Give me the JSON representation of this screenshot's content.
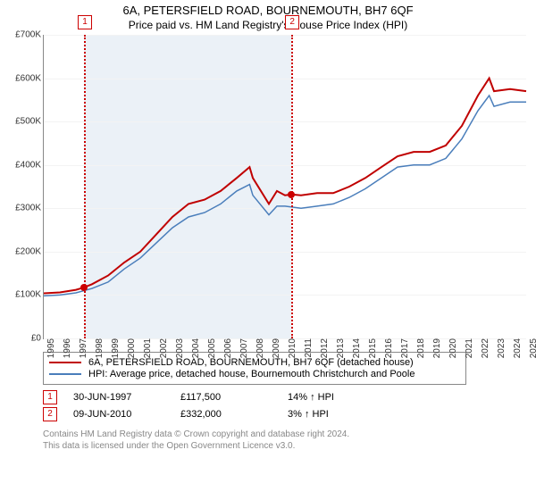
{
  "title": "6A, PETERSFIELD ROAD, BOURNEMOUTH, BH7 6QF",
  "subtitle": "Price paid vs. HM Land Registry's House Price Index (HPI)",
  "x_domain": [
    1995,
    2025
  ],
  "y_domain": [
    0,
    700000
  ],
  "y_ticks": [
    0,
    100000,
    200000,
    300000,
    400000,
    500000,
    600000,
    700000
  ],
  "y_tick_labels": [
    "£0",
    "£100K",
    "£200K",
    "£300K",
    "£400K",
    "£500K",
    "£600K",
    "£700K"
  ],
  "x_ticks": [
    1995,
    1996,
    1997,
    1998,
    1999,
    2000,
    2001,
    2002,
    2003,
    2004,
    2005,
    2006,
    2007,
    2008,
    2009,
    2010,
    2011,
    2012,
    2013,
    2014,
    2015,
    2016,
    2017,
    2018,
    2019,
    2020,
    2021,
    2022,
    2023,
    2024,
    2025
  ],
  "grid_color": "#f0f0f0",
  "marker_color": "#c00000",
  "shade_color": "#dbe5f1",
  "shade": {
    "from": 1997.5,
    "to": 2010.4
  },
  "markers": [
    {
      "n": "1",
      "x": 1997.5,
      "y": 117500
    },
    {
      "n": "2",
      "x": 2010.4,
      "y": 332000
    }
  ],
  "legend": [
    {
      "color": "#c00000",
      "label": "6A, PETERSFIELD ROAD, BOURNEMOUTH, BH7 6QF (detached house)"
    },
    {
      "color": "#4a7ebb",
      "label": "HPI: Average price, detached house, Bournemouth Christchurch and Poole"
    }
  ],
  "series": [
    {
      "color": "#c00000",
      "width": 2,
      "points": [
        [
          1995,
          104000
        ],
        [
          1996,
          106000
        ],
        [
          1997,
          112000
        ],
        [
          1997.5,
          117500
        ],
        [
          1998,
          125000
        ],
        [
          1999,
          145000
        ],
        [
          2000,
          175000
        ],
        [
          2001,
          200000
        ],
        [
          2002,
          240000
        ],
        [
          2003,
          280000
        ],
        [
          2004,
          310000
        ],
        [
          2005,
          320000
        ],
        [
          2006,
          340000
        ],
        [
          2007,
          370000
        ],
        [
          2007.8,
          395000
        ],
        [
          2008,
          370000
        ],
        [
          2009,
          310000
        ],
        [
          2009.5,
          340000
        ],
        [
          2010,
          330000
        ],
        [
          2010.4,
          332000
        ],
        [
          2011,
          330000
        ],
        [
          2012,
          335000
        ],
        [
          2013,
          335000
        ],
        [
          2014,
          350000
        ],
        [
          2015,
          370000
        ],
        [
          2016,
          395000
        ],
        [
          2017,
          420000
        ],
        [
          2018,
          430000
        ],
        [
          2019,
          430000
        ],
        [
          2020,
          445000
        ],
        [
          2021,
          490000
        ],
        [
          2022,
          560000
        ],
        [
          2022.7,
          600000
        ],
        [
          2023,
          570000
        ],
        [
          2024,
          575000
        ],
        [
          2025,
          570000
        ]
      ]
    },
    {
      "color": "#4a7ebb",
      "width": 1.5,
      "points": [
        [
          1995,
          98000
        ],
        [
          1996,
          100000
        ],
        [
          1997,
          105000
        ],
        [
          1998,
          115000
        ],
        [
          1999,
          130000
        ],
        [
          2000,
          160000
        ],
        [
          2001,
          185000
        ],
        [
          2002,
          220000
        ],
        [
          2003,
          255000
        ],
        [
          2004,
          280000
        ],
        [
          2005,
          290000
        ],
        [
          2006,
          310000
        ],
        [
          2007,
          340000
        ],
        [
          2007.8,
          355000
        ],
        [
          2008,
          330000
        ],
        [
          2009,
          285000
        ],
        [
          2009.5,
          305000
        ],
        [
          2010,
          305000
        ],
        [
          2011,
          300000
        ],
        [
          2012,
          305000
        ],
        [
          2013,
          310000
        ],
        [
          2014,
          325000
        ],
        [
          2015,
          345000
        ],
        [
          2016,
          370000
        ],
        [
          2017,
          395000
        ],
        [
          2018,
          400000
        ],
        [
          2019,
          400000
        ],
        [
          2020,
          415000
        ],
        [
          2021,
          460000
        ],
        [
          2022,
          525000
        ],
        [
          2022.7,
          560000
        ],
        [
          2023,
          535000
        ],
        [
          2024,
          545000
        ],
        [
          2025,
          545000
        ]
      ]
    }
  ],
  "sales": [
    {
      "n": "1",
      "date": "30-JUN-1997",
      "price": "£117,500",
      "delta": "14% ↑ HPI"
    },
    {
      "n": "2",
      "date": "09-JUN-2010",
      "price": "£332,000",
      "delta": "3% ↑ HPI"
    }
  ],
  "footer": [
    "Contains HM Land Registry data © Crown copyright and database right 2024.",
    "This data is licensed under the Open Government Licence v3.0."
  ]
}
